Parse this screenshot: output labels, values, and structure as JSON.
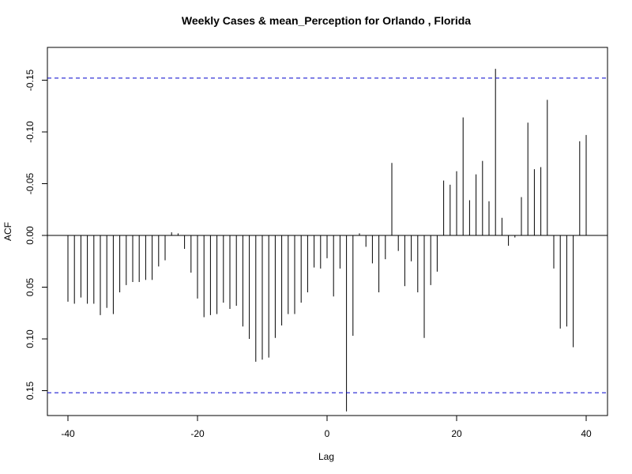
{
  "chart_data": {
    "type": "bar",
    "title": "Weekly Cases & mean_Perception for Orlando , Florida",
    "xlabel": "Lag",
    "ylabel": "ACF",
    "xlim": [
      -40,
      40
    ],
    "ylim": [
      -0.17,
      0.18
    ],
    "x_ticks": [
      -40,
      -20,
      0,
      20,
      40
    ],
    "x_tick_labels": [
      "-40",
      "-20",
      "0",
      "20",
      "40"
    ],
    "y_ticks": [
      -0.15,
      -0.1,
      -0.05,
      0.0,
      0.05,
      0.1,
      0.15
    ],
    "y_tick_labels": [
      "-0.15",
      "-0.10",
      "-0.05",
      "0.00",
      "0.05",
      "0.10",
      "0.15"
    ],
    "confidence_bound": 0.152,
    "colors": {
      "bars": "#000000",
      "confidence": "#0000cc",
      "zero_line": "#000000",
      "frame": "#000000"
    },
    "lags": [
      -40,
      -39,
      -38,
      -37,
      -36,
      -35,
      -34,
      -33,
      -32,
      -31,
      -30,
      -29,
      -28,
      -27,
      -26,
      -25,
      -24,
      -23,
      -22,
      -21,
      -20,
      -19,
      -18,
      -17,
      -16,
      -15,
      -14,
      -13,
      -12,
      -11,
      -10,
      -9,
      -8,
      -7,
      -6,
      -5,
      -4,
      -3,
      -2,
      -1,
      0,
      1,
      2,
      3,
      4,
      5,
      6,
      7,
      8,
      9,
      10,
      11,
      12,
      13,
      14,
      15,
      16,
      17,
      18,
      19,
      20,
      21,
      22,
      23,
      24,
      25,
      26,
      27,
      28,
      29,
      30,
      31,
      32,
      33,
      34,
      35,
      36,
      37,
      38,
      39,
      40
    ],
    "values": [
      0.064,
      0.066,
      0.06,
      0.066,
      0.066,
      0.077,
      0.07,
      0.076,
      0.055,
      0.048,
      0.045,
      0.045,
      0.043,
      0.043,
      0.03,
      0.024,
      -0.003,
      -0.002,
      0.013,
      0.036,
      0.061,
      0.079,
      0.077,
      0.076,
      0.065,
      0.071,
      0.068,
      0.088,
      0.1,
      0.122,
      0.12,
      0.118,
      0.099,
      0.087,
      0.076,
      0.076,
      0.065,
      0.055,
      0.031,
      0.032,
      0.022,
      0.059,
      0.032,
      0.17,
      0.097,
      -0.002,
      0.011,
      0.027,
      0.055,
      0.023,
      -0.07,
      0.015,
      0.049,
      0.025,
      0.055,
      0.099,
      0.048,
      0.035,
      -0.053,
      -0.049,
      -0.062,
      -0.114,
      -0.034,
      -0.059,
      -0.072,
      -0.033,
      -0.161,
      -0.017,
      0.01,
      0.002,
      -0.037,
      -0.109,
      -0.064,
      -0.066,
      -0.131,
      0.032,
      0.09,
      0.088,
      0.108,
      -0.091,
      -0.097
    ]
  }
}
